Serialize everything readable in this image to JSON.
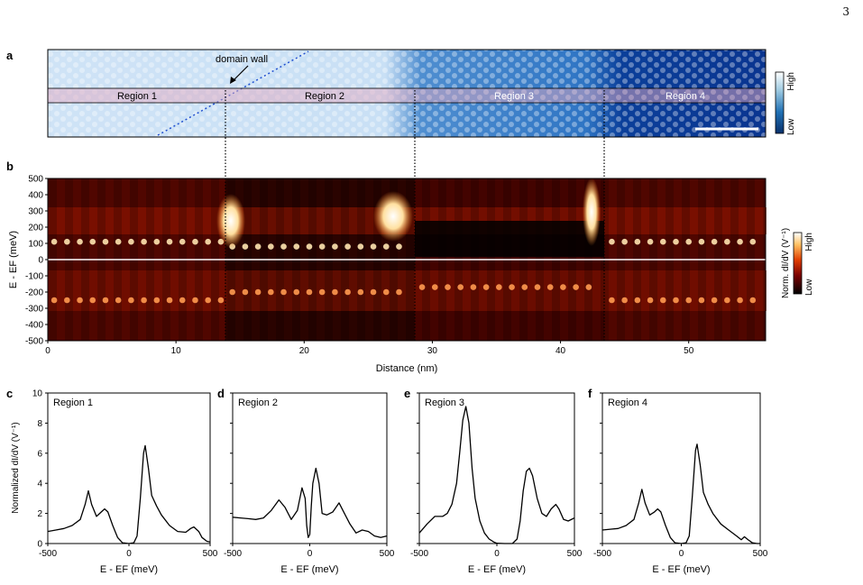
{
  "page_number": "3",
  "panel_a": {
    "label": "a",
    "annotation": "domain wall",
    "regions": [
      "Region 1",
      "Region 2",
      "Region 3",
      "Region 4"
    ],
    "colorbar": {
      "high": "High",
      "low": "Low",
      "colors": [
        "#08306b",
        "#2171b5",
        "#9ecae1",
        "#ffffff"
      ]
    }
  },
  "panel_b": {
    "label": "b",
    "ylabel": "E - EF (meV)",
    "xlabel": "Distance (nm)",
    "yticks": [
      "500",
      "400",
      "300",
      "200",
      "100",
      "0",
      "-100",
      "-200",
      "-300",
      "-400",
      "-500"
    ],
    "xticks": [
      "0",
      "10",
      "20",
      "30",
      "40",
      "50"
    ],
    "colorbar": {
      "high": "High",
      "low": "Low",
      "label": "Norm. dI/dV (V⁻¹)",
      "colors": [
        "#000000",
        "#7a0000",
        "#e03c00",
        "#ffc060",
        "#ffffff"
      ]
    }
  },
  "spectra_common": {
    "ylabel": "Normalized dI/dV (V⁻¹)",
    "xlabel": "E - EF (meV)",
    "xticks": [
      "-500",
      "0",
      "500"
    ],
    "yticks": [
      "0",
      "2",
      "4",
      "6",
      "8",
      "10"
    ]
  },
  "chart_data": [
    {
      "type": "heatmap",
      "panel": "b",
      "x_range_nm": [
        0,
        56
      ],
      "y_range_meV": [
        -500,
        500
      ],
      "boundaries_nm": [
        13.9,
        28.7,
        43.5
      ],
      "flat_band_rows": [
        {
          "name": "upper",
          "energy_meV": [
            110,
            80,
            0,
            110
          ]
        },
        {
          "name": "lower",
          "energy_meV": [
            -250,
            -200,
            -170,
            -250
          ]
        }
      ]
    },
    {
      "type": "line",
      "panel": "c",
      "title": "Region 1",
      "x": [
        -500,
        -450,
        -400,
        -350,
        -300,
        -270,
        -250,
        -230,
        -200,
        -170,
        -150,
        -130,
        -100,
        -70,
        -40,
        0,
        30,
        50,
        70,
        90,
        100,
        120,
        140,
        170,
        200,
        250,
        300,
        350,
        380,
        400,
        430,
        450,
        480,
        500
      ],
      "y": [
        0.8,
        0.9,
        1.0,
        1.2,
        1.6,
        2.6,
        3.5,
        2.6,
        1.8,
        2.1,
        2.3,
        2.1,
        1.2,
        0.4,
        0.05,
        0.0,
        0.05,
        0.5,
        3.0,
        6.0,
        6.5,
        5.0,
        3.2,
        2.5,
        1.9,
        1.2,
        0.8,
        0.75,
        1.0,
        1.1,
        0.8,
        0.4,
        0.15,
        0.1
      ],
      "xlim": [
        -500,
        500
      ],
      "ylim": [
        0,
        10
      ]
    },
    {
      "type": "line",
      "panel": "d",
      "title": "Region 2",
      "x": [
        -500,
        -450,
        -400,
        -350,
        -300,
        -250,
        -200,
        -160,
        -120,
        -80,
        -50,
        -30,
        -20,
        -10,
        0,
        10,
        20,
        40,
        60,
        80,
        110,
        150,
        190,
        220,
        260,
        300,
        340,
        380,
        420,
        460,
        500
      ],
      "y": [
        1.75,
        1.7,
        1.65,
        1.6,
        1.7,
        2.2,
        2.9,
        2.4,
        1.6,
        2.2,
        3.7,
        3.0,
        1.2,
        0.4,
        0.6,
        2.5,
        4.0,
        5.0,
        4.0,
        2.0,
        1.9,
        2.1,
        2.7,
        2.1,
        1.3,
        0.7,
        0.9,
        0.8,
        0.5,
        0.4,
        0.5
      ],
      "xlim": [
        -500,
        500
      ],
      "ylim": [
        0,
        10
      ]
    },
    {
      "type": "line",
      "panel": "e",
      "title": "Region 3",
      "x": [
        -500,
        -450,
        -400,
        -350,
        -320,
        -290,
        -260,
        -240,
        -220,
        -200,
        -180,
        -160,
        -140,
        -110,
        -80,
        -50,
        -20,
        0,
        50,
        100,
        130,
        150,
        170,
        190,
        210,
        230,
        260,
        290,
        320,
        350,
        380,
        400,
        430,
        460,
        500
      ],
      "y": [
        0.7,
        1.3,
        1.8,
        1.8,
        2.0,
        2.6,
        4.0,
        6.0,
        8.2,
        9.1,
        8.0,
        5.0,
        3.0,
        1.5,
        0.7,
        0.3,
        0.1,
        0.02,
        0.0,
        0.0,
        0.3,
        1.5,
        3.5,
        4.8,
        5.0,
        4.5,
        3.0,
        2.0,
        1.8,
        2.3,
        2.6,
        2.3,
        1.6,
        1.5,
        1.7
      ],
      "xlim": [
        -500,
        500
      ],
      "ylim": [
        0,
        10
      ]
    },
    {
      "type": "line",
      "panel": "f",
      "title": "Region 4",
      "x": [
        -500,
        -450,
        -400,
        -350,
        -300,
        -270,
        -250,
        -230,
        -200,
        -170,
        -150,
        -130,
        -100,
        -70,
        -40,
        0,
        30,
        50,
        70,
        90,
        100,
        120,
        140,
        170,
        200,
        250,
        300,
        350,
        380,
        400,
        430,
        450,
        480,
        500
      ],
      "y": [
        0.9,
        0.95,
        1.0,
        1.2,
        1.6,
        2.7,
        3.6,
        2.7,
        1.9,
        2.1,
        2.3,
        2.1,
        1.2,
        0.4,
        0.05,
        0.0,
        0.05,
        0.5,
        3.2,
        6.2,
        6.6,
        5.2,
        3.4,
        2.6,
        2.0,
        1.3,
        0.9,
        0.5,
        0.25,
        0.45,
        0.2,
        0.05,
        0.0,
        0.0
      ],
      "xlim": [
        -500,
        500
      ],
      "ylim": [
        0,
        10
      ]
    }
  ]
}
